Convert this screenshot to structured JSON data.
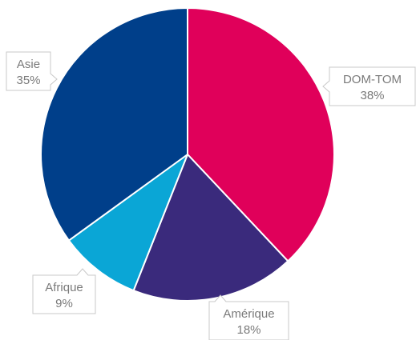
{
  "chart_data": {
    "type": "pie",
    "categories": [
      "DOM-TOM",
      "Amérique",
      "Afrique",
      "Asie"
    ],
    "values": [
      38,
      18,
      9,
      35
    ],
    "labels": [
      {
        "name": "DOM-TOM",
        "value": "38%"
      },
      {
        "name": "Amérique",
        "value": "18%"
      },
      {
        "name": "Afrique",
        "value": "9%"
      },
      {
        "name": "Asie",
        "value": "35%"
      }
    ],
    "colors": [
      "#e0005a",
      "#3a2a7c",
      "#0aa6d6",
      "#003f8a"
    ],
    "start_angle": "12 o'clock",
    "direction": "clockwise",
    "legend": "none"
  }
}
